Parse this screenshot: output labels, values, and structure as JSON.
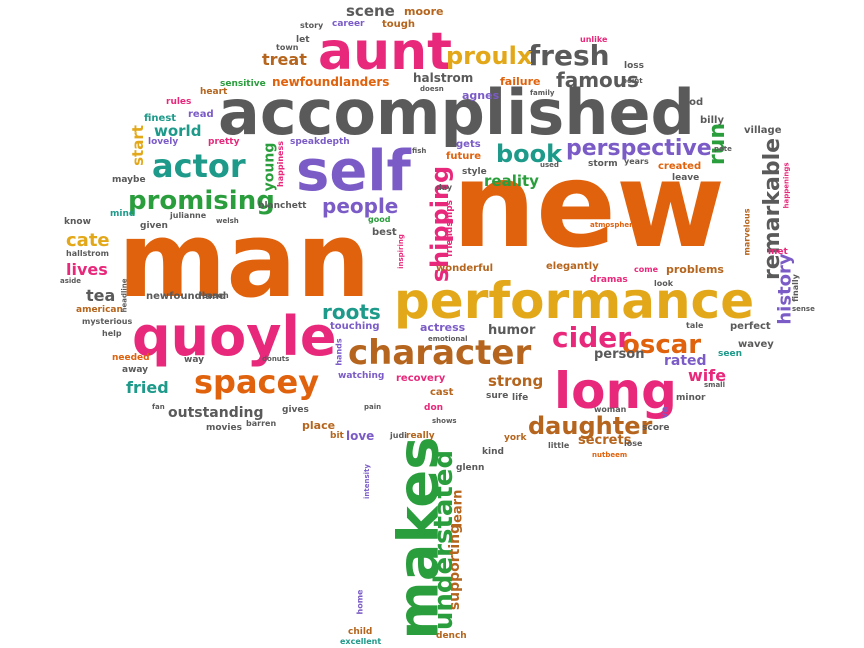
{
  "colors": {
    "orange": "#e0620d",
    "gray": "#5a5a5a",
    "pink": "#e8297b",
    "purple": "#7b5cc7",
    "green": "#2a9d3c",
    "yellow": "#e3a81a",
    "teal": "#1d9a8a",
    "brown": "#b5651d"
  },
  "words": {
    "man": "man",
    "new": "new",
    "accomplished": "accomplished",
    "performance": "performance",
    "aunt": "aunt",
    "self": "self",
    "quoyle": "quoyle",
    "long": "long",
    "makes": "makes",
    "character": "character",
    "spacey": "spacey",
    "understated": "understated",
    "actor": "actor",
    "promising": "promising",
    "shipping": "shipping",
    "fresh": "fresh",
    "proulx": "proulx",
    "famous": "famous",
    "book": "book",
    "perspective": "perspective",
    "oscar": "oscar",
    "cider": "cider",
    "daughter": "daughter",
    "remarkable": "remarkable",
    "run": "run",
    "people": "people",
    "roots": "roots",
    "cate": "cate",
    "lives": "lives",
    "tea": "tea",
    "history": "history",
    "treat": "treat",
    "newfoundlanders": "newfoundlanders",
    "halstrom": "halstrom",
    "agnes": "agnes",
    "failure": "failure",
    "world": "world",
    "start": "start",
    "young": "young",
    "reality": "reality",
    "scene": "scene",
    "moore": "moore",
    "story": "story",
    "career": "career",
    "tough": "tough",
    "let": "let",
    "town": "town",
    "fried": "fried",
    "outstanding": "outstanding",
    "strong": "strong",
    "humor": "humor",
    "wife": "wife",
    "rated": "rated",
    "person": "person",
    "secrets": "secrets",
    "supporting": "supporting",
    "learn": "learn",
    "love": "love",
    "place": "place",
    "newfoundland": "newfoundland",
    "sensitive": "sensitive",
    "rules": "rules",
    "heart": "heart",
    "finest": "finest",
    "read": "read",
    "lovely": "lovely",
    "pretty": "pretty",
    "speak": "speak",
    "depth": "depth",
    "maybe": "maybe",
    "mind": "mind",
    "given": "given",
    "julianne": "julianne",
    "blanchett": "blanchett",
    "know": "know",
    "hallstrom": "hallstrom",
    "american": "american",
    "mysterious": "mysterious",
    "help": "help",
    "needed": "needed",
    "away": "away",
    "way": "way",
    "movies": "movies",
    "gives": "gives",
    "bit": "bit",
    "judi": "judi",
    "really": "really",
    "elegantly": "elegantly",
    "dramas": "dramas",
    "problems": "problems",
    "come": "come",
    "look": "look",
    "marvelous": "marvelous",
    "met": "met",
    "village": "village",
    "billy": "billy",
    "nod": "nod",
    "created": "created",
    "leave": "leave",
    "storm": "storm",
    "years": "years",
    "future": "future",
    "style": "style",
    "gets": "gets",
    "wonderful": "wonderful",
    "best": "best",
    "good": "good",
    "actress": "actress",
    "touching": "touching",
    "hands": "hands",
    "watching": "watching",
    "recovery": "recovery",
    "cast": "cast",
    "don": "don",
    "sure": "sure",
    "life": "life",
    "score": "score",
    "minor": "minor",
    "ve": "ve",
    "seen": "seen",
    "perfect": "perfect",
    "tale": "tale",
    "wavey": "wavey",
    "finally": "finally",
    "york": "york",
    "kind": "kind",
    "little": "little",
    "lose": "lose",
    "woman": "woman",
    "nutbeem": "nutbeem",
    "glenn": "glenn",
    "dench": "dench",
    "child": "child",
    "excellent": "excellent",
    "home": "home",
    "loss": "loss",
    "point": "point",
    "unlike": "unlike",
    "family": "family",
    "fish": "fish",
    "day": "day",
    "happiness": "happiness",
    "friendships": "friendships",
    "inspiring": "inspiring",
    "atmosphere": "atmosphere",
    "small": "small",
    "pete": "pete",
    "happenings": "happenings",
    "headline": "headline",
    "reason": "reason",
    "barren": "barren",
    "donuts": "donuts",
    "emotional": "emotional",
    "shows": "shows",
    "pain": "pain",
    "fan": "fan",
    "aside": "aside",
    "welsh": "welsh",
    "used": "used",
    "doesn": "doesn",
    "sense": "sense",
    "intensity": "intensity"
  }
}
